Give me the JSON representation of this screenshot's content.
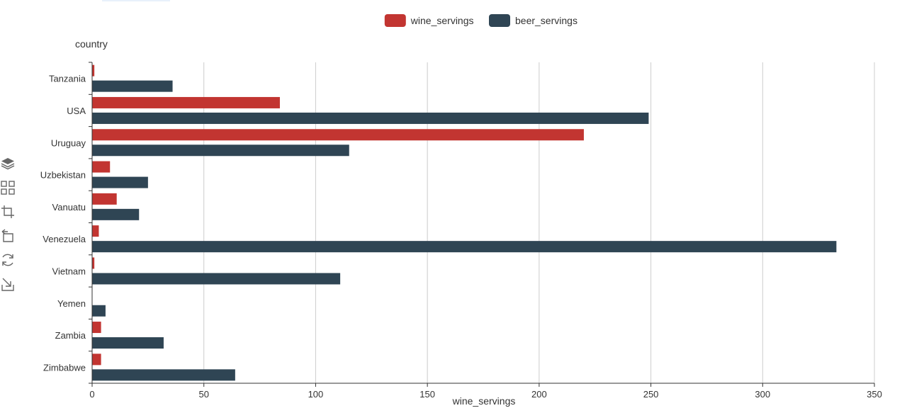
{
  "chart_data": {
    "type": "bar",
    "orientation": "horizontal",
    "categories": [
      "Tanzania",
      "USA",
      "Uruguay",
      "Uzbekistan",
      "Vanuatu",
      "Venezuela",
      "Vietnam",
      "Yemen",
      "Zambia",
      "Zimbabwe"
    ],
    "series": [
      {
        "name": "wine_servings",
        "color": "#c23531",
        "values": [
          1,
          84,
          220,
          8,
          11,
          3,
          1,
          0,
          4,
          4
        ]
      },
      {
        "name": "beer_servings",
        "color": "#2f4554",
        "values": [
          36,
          249,
          115,
          25,
          21,
          333,
          111,
          6,
          32,
          64
        ]
      }
    ],
    "xlabel": "wine_servings",
    "ylabel": "country",
    "xlim": [
      0,
      350
    ],
    "xticks": [
      0,
      50,
      100,
      150,
      200,
      250,
      300,
      350
    ],
    "grid": true,
    "legend": "top-center"
  },
  "toolbox": {
    "icons": [
      "stack-icon",
      "tiled-icon",
      "data-zoom-icon",
      "zoom-reset-icon",
      "restore-icon",
      "save-image-icon"
    ]
  }
}
